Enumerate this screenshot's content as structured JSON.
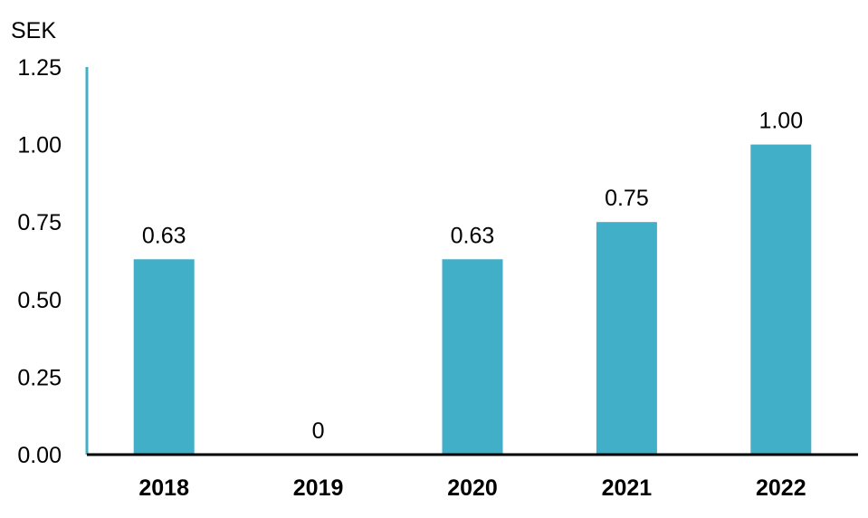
{
  "chart_data": {
    "type": "bar",
    "title": "",
    "xlabel": "",
    "ylabel": "SEK",
    "categories": [
      "2018",
      "2019",
      "2020",
      "2021",
      "2022"
    ],
    "values": [
      0.63,
      0,
      0.63,
      0.75,
      1.0
    ],
    "value_labels": [
      "0.63",
      "0",
      "0.63",
      "0.75",
      "1.00"
    ],
    "ylim": [
      0,
      1.25
    ],
    "yticks": [
      "0.00",
      "0.25",
      "0.50",
      "0.75",
      "1.00",
      "1.25"
    ],
    "grid": false,
    "legend": "none",
    "colors": {
      "bar": "#41AFC8",
      "y_axis": "#41AFC8",
      "x_axis": "#000000"
    }
  }
}
